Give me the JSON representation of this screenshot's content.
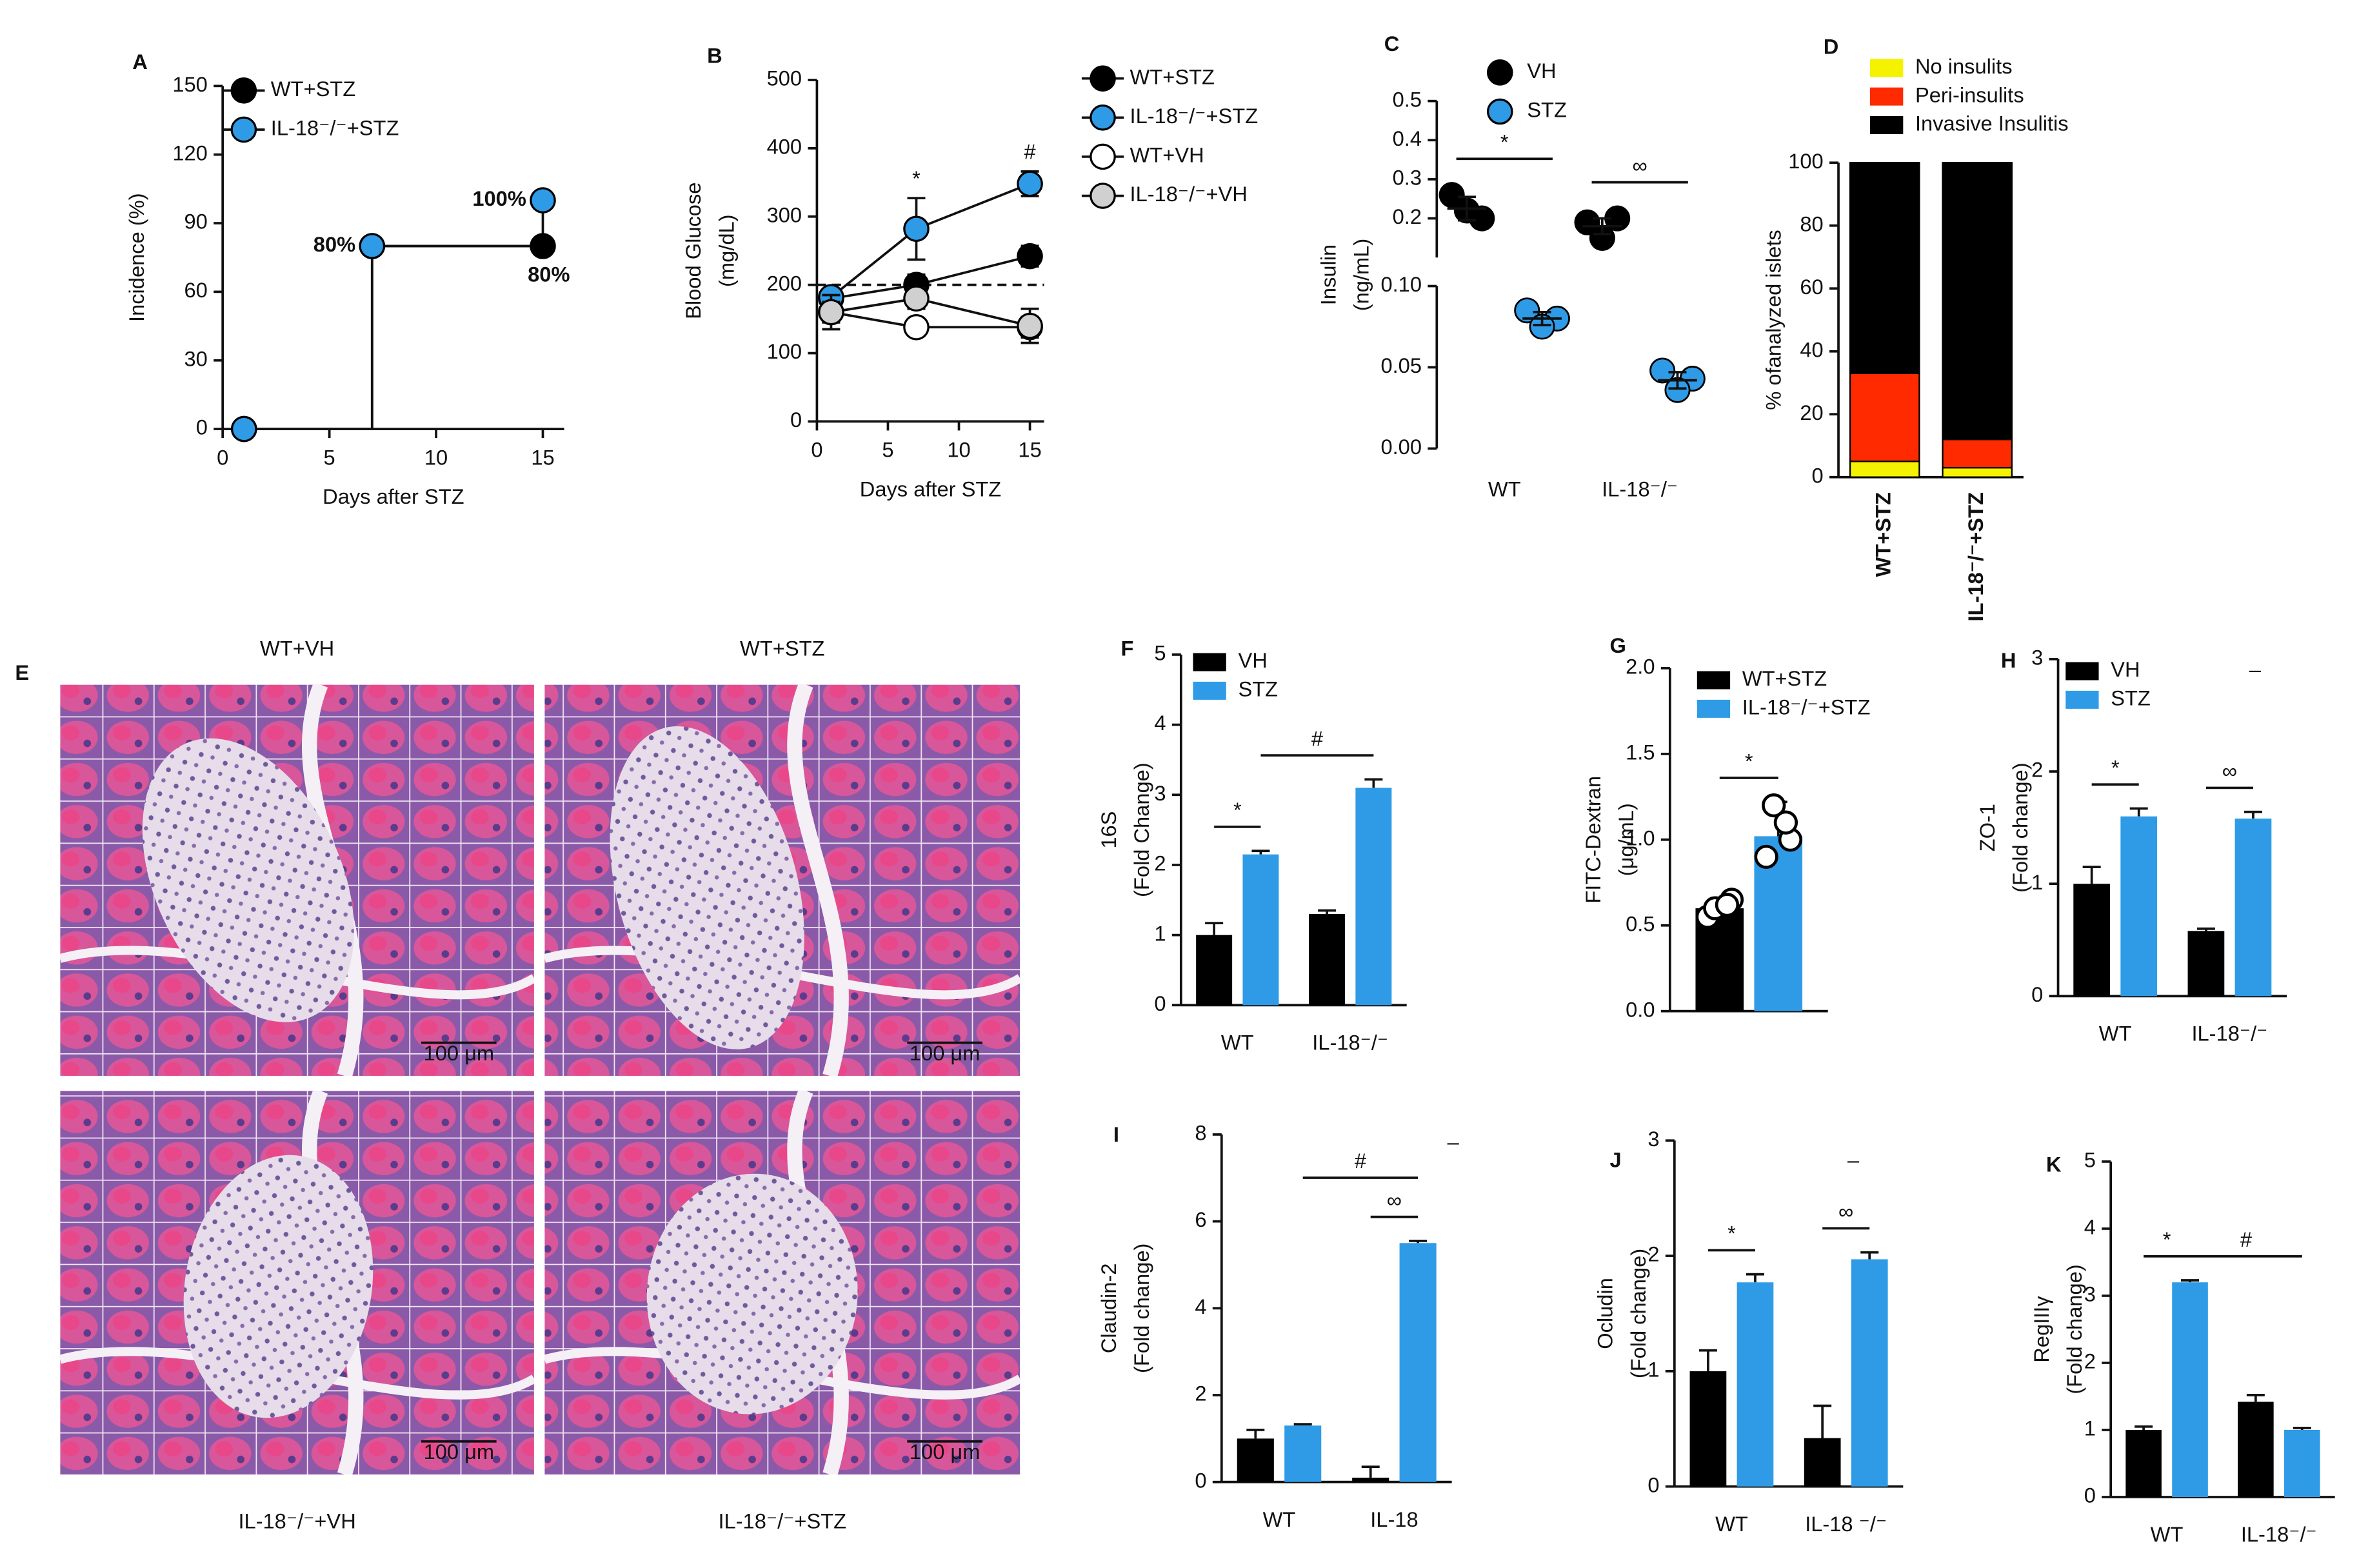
{
  "chart_data": [
    {
      "label": "A",
      "type": "line",
      "step": true,
      "xlabel": "Days after STZ",
      "ylabel": [
        "Incidence (%)"
      ],
      "x": [
        1,
        7,
        15
      ],
      "xlim": [
        0,
        16
      ],
      "xticks": [
        0,
        5,
        10,
        15
      ],
      "ylim": [
        0,
        150
      ],
      "yticks": [
        0,
        30,
        60,
        90,
        120,
        150
      ],
      "legend": "upper left",
      "series": [
        {
          "name": "WT+STZ",
          "color": "#000000",
          "values": [
            0,
            80,
            80
          ],
          "value_labels": [
            null,
            null,
            "80%"
          ]
        },
        {
          "name": "IL-18⁻/⁻+STZ",
          "color": "#2f9be6",
          "values": [
            0,
            80,
            100
          ],
          "value_labels": [
            null,
            "80%",
            "100%"
          ]
        }
      ]
    },
    {
      "label": "B",
      "type": "line",
      "xlabel": "Days after STZ",
      "ylabel": [
        "Blood Glucose",
        "(mg/dL)"
      ],
      "x": [
        1,
        7,
        15
      ],
      "xlim": [
        0,
        16
      ],
      "xticks": [
        0,
        5,
        10,
        15
      ],
      "ylim": [
        0,
        500
      ],
      "yticks": [
        0,
        100,
        200,
        300,
        400,
        500
      ],
      "hline": 200,
      "legend": "right",
      "annotations": [
        {
          "x": 7,
          "text": "*"
        },
        {
          "x": 15,
          "text": "#"
        }
      ],
      "series": [
        {
          "name": "WT+STZ",
          "color": "#000000",
          "values": [
            180,
            200,
            242
          ],
          "errors": [
            10,
            15,
            15
          ]
        },
        {
          "name": "IL-18⁻/⁻+STZ",
          "color": "#2f9be6",
          "values": [
            182,
            282,
            348
          ],
          "errors": [
            10,
            45,
            18
          ]
        },
        {
          "name": "WT+VH",
          "color": "#ffffff",
          "values": [
            160,
            138,
            138
          ],
          "errors": [
            25,
            10,
            15
          ]
        },
        {
          "name": "IL-18⁻/⁻+VH",
          "color": "#d0d0d0",
          "values": [
            160,
            180,
            140
          ],
          "errors": [
            15,
            15,
            25
          ]
        }
      ]
    },
    {
      "label": "C",
      "type": "dot",
      "ylabel": [
        "Insulin",
        "(ng/mL)"
      ],
      "categories": [
        "WT",
        "IL-18⁻/⁻"
      ],
      "ysegments": [
        {
          "ylim": [
            0,
            0.1
          ],
          "yticks": [
            {
              "value": 0,
              "label": "0.00"
            },
            0.05,
            {
              "value": 0.1,
              "label": "0.10"
            }
          ]
        },
        {
          "ylim": [
            0.1,
            0.5
          ],
          "yticks": [
            0.2,
            0.3,
            0.4,
            0.5
          ]
        }
      ],
      "series": [
        {
          "name": "VH",
          "color": "#000000",
          "points": [
            [
              0.26,
              0.2,
              0.22
            ],
            [
              0.19,
              0.2,
              0.15
            ]
          ],
          "mean": [
            0.225,
            0.18
          ],
          "error": [
            0.03,
            0.02
          ]
        },
        {
          "name": "STZ",
          "color": "#2f9be6",
          "points": [
            [
              0.085,
              0.08,
              0.075
            ],
            [
              0.048,
              0.043,
              0.036
            ]
          ],
          "mean": [
            0.08,
            0.042
          ],
          "error": [
            0.004,
            0.005
          ]
        }
      ],
      "brackets": [
        {
          "category": 0,
          "text": "*"
        },
        {
          "category": 1,
          "text": "∞"
        }
      ]
    },
    {
      "label": "D",
      "type": "stacked-bar",
      "ylabel": [
        "% ofanalyzed islets"
      ],
      "categories": [
        "WT+STZ",
        "IL-18⁻/⁻+STZ"
      ],
      "ylim": [
        0,
        100
      ],
      "yticks": [
        0,
        20,
        40,
        60,
        80,
        100
      ],
      "series": [
        {
          "name": "No insulits",
          "color": "#f5f200",
          "values": [
            5,
            3
          ]
        },
        {
          "name": "Peri-insulits",
          "color": "#ff2a00",
          "values": [
            28,
            9
          ]
        },
        {
          "name": "Invasive Insulitis",
          "color": "#000000",
          "values": [
            67,
            88
          ]
        }
      ]
    },
    {
      "label": "F",
      "type": "bar",
      "ylabel": [
        "16S",
        "(Fold Change)"
      ],
      "categories": [
        "WT",
        "IL-18⁻/⁻"
      ],
      "ylim": [
        0,
        5
      ],
      "yticks": [
        0,
        1,
        2,
        3,
        4,
        5
      ],
      "series": [
        {
          "name": "VH",
          "color": "#000000",
          "values": [
            1,
            1.3
          ],
          "errors": [
            0.17,
            0.05
          ]
        },
        {
          "name": "STZ",
          "color": "#2f9be6",
          "values": [
            2.15,
            3.1
          ],
          "errors": [
            0.05,
            0.12
          ]
        }
      ],
      "brackets": [
        {
          "from": [
            0,
            0
          ],
          "to": [
            0,
            1
          ],
          "text": "*"
        },
        {
          "from": [
            0,
            1
          ],
          "to": [
            1,
            1
          ],
          "text": "#"
        }
      ]
    },
    {
      "label": "G",
      "type": "bar",
      "ylabel": [
        "FITC-Dextran",
        "(μg/mL)"
      ],
      "ylim": [
        0,
        2
      ],
      "yticks": [
        {
          "value": 0,
          "label": "0.0"
        },
        0.5,
        {
          "value": 1,
          "label": "1.0"
        },
        1.5,
        {
          "value": 2,
          "label": "2.0"
        }
      ],
      "series": [
        {
          "name": "WT+STZ",
          "color": "#000000",
          "values": [
            0.6
          ],
          "errors": [
            0.06
          ],
          "points": [
            [
              0.55,
              0.65,
              0.6,
              0.62
            ]
          ]
        },
        {
          "name": "IL-18⁻/⁻+STZ",
          "color": "#2f9be6",
          "values": [
            1.02
          ],
          "errors": [
            0.2
          ],
          "points": [
            [
              0.9,
              1.0,
              1.2,
              1.1
            ]
          ]
        }
      ],
      "brackets": [
        {
          "from": [
            0,
            0
          ],
          "to": [
            0,
            1
          ],
          "text": "*"
        }
      ]
    },
    {
      "label": "H",
      "type": "bar",
      "ylabel": [
        "ZO-1",
        "(Fold change)"
      ],
      "categories": [
        "WT",
        "IL-18⁻/⁻"
      ],
      "ylim": [
        0,
        3
      ],
      "yticks": [
        0,
        1,
        2,
        3
      ],
      "note": "–",
      "series": [
        {
          "name": "VH",
          "color": "#000000",
          "values": [
            1,
            0.58
          ],
          "errors": [
            0.15,
            0.02
          ]
        },
        {
          "name": "STZ",
          "color": "#2f9be6",
          "values": [
            1.6,
            1.58
          ],
          "errors": [
            0.07,
            0.06
          ]
        }
      ],
      "brackets": [
        {
          "from": [
            0,
            0
          ],
          "to": [
            0,
            1
          ],
          "text": "*"
        },
        {
          "from": [
            1,
            0
          ],
          "to": [
            1,
            1
          ],
          "text": "∞"
        }
      ]
    },
    {
      "label": "I",
      "type": "bar",
      "ylabel": [
        "Claudin-2",
        "(Fold change)"
      ],
      "categories": [
        "WT",
        "IL-18"
      ],
      "ylim": [
        0,
        8
      ],
      "yticks": [
        0,
        2,
        4,
        6,
        8
      ],
      "note": "–",
      "series": [
        {
          "color": "#000000",
          "values": [
            1,
            0.1
          ],
          "errors": [
            0.2,
            0.25
          ]
        },
        {
          "color": "#2f9be6",
          "values": [
            1.3,
            5.5
          ],
          "errors": [
            0.03,
            0.05
          ]
        }
      ],
      "brackets": [
        {
          "from": [
            1,
            0
          ],
          "to": [
            1,
            1
          ],
          "text": "∞"
        },
        {
          "from": [
            0,
            1
          ],
          "to": [
            1,
            1
          ],
          "text": "#"
        }
      ]
    },
    {
      "label": "J",
      "type": "bar",
      "ylabel": [
        "Ocludin",
        "(Fold change)"
      ],
      "categories": [
        "WT",
        "IL-18 ⁻/⁻"
      ],
      "ylim": [
        0,
        3
      ],
      "yticks": [
        0,
        1,
        2,
        3
      ],
      "note": "–",
      "series": [
        {
          "color": "#000000",
          "values": [
            1,
            0.42
          ],
          "errors": [
            0.18,
            0.28
          ]
        },
        {
          "color": "#2f9be6",
          "values": [
            1.77,
            1.97
          ],
          "errors": [
            0.07,
            0.06
          ]
        }
      ],
      "brackets": [
        {
          "from": [
            0,
            0
          ],
          "to": [
            0,
            1
          ],
          "text": "*"
        },
        {
          "from": [
            1,
            0
          ],
          "to": [
            1,
            1
          ],
          "text": "∞"
        }
      ]
    },
    {
      "label": "K",
      "type": "bar",
      "ylabel": [
        "RegIIIγ",
        "(Fold change)"
      ],
      "categories": [
        "WT",
        "IL-18⁻/⁻"
      ],
      "ylim": [
        0,
        5
      ],
      "yticks": [
        0,
        1,
        2,
        3,
        4,
        5
      ],
      "series": [
        {
          "color": "#000000",
          "values": [
            1,
            1.42
          ],
          "errors": [
            0.05,
            0.1
          ]
        },
        {
          "color": "#2f9be6",
          "values": [
            3.2,
            1
          ],
          "errors": [
            0.03,
            0.03
          ]
        }
      ],
      "brackets": [
        {
          "from": [
            0,
            0
          ],
          "to": [
            0,
            1
          ],
          "text": "*"
        },
        {
          "from": [
            0,
            1
          ],
          "to": [
            1,
            1
          ],
          "text": "#"
        }
      ]
    }
  ],
  "images": {
    "label": "E",
    "panels": [
      {
        "title": "WT+VH",
        "scale": "100 μm"
      },
      {
        "title": "WT+STZ",
        "scale": "100 μm"
      },
      {
        "title": "IL-18⁻/⁻+VH",
        "scale": "100 μm"
      },
      {
        "title": "IL-18⁻/⁻+STZ",
        "scale": "100 μm"
      }
    ]
  }
}
